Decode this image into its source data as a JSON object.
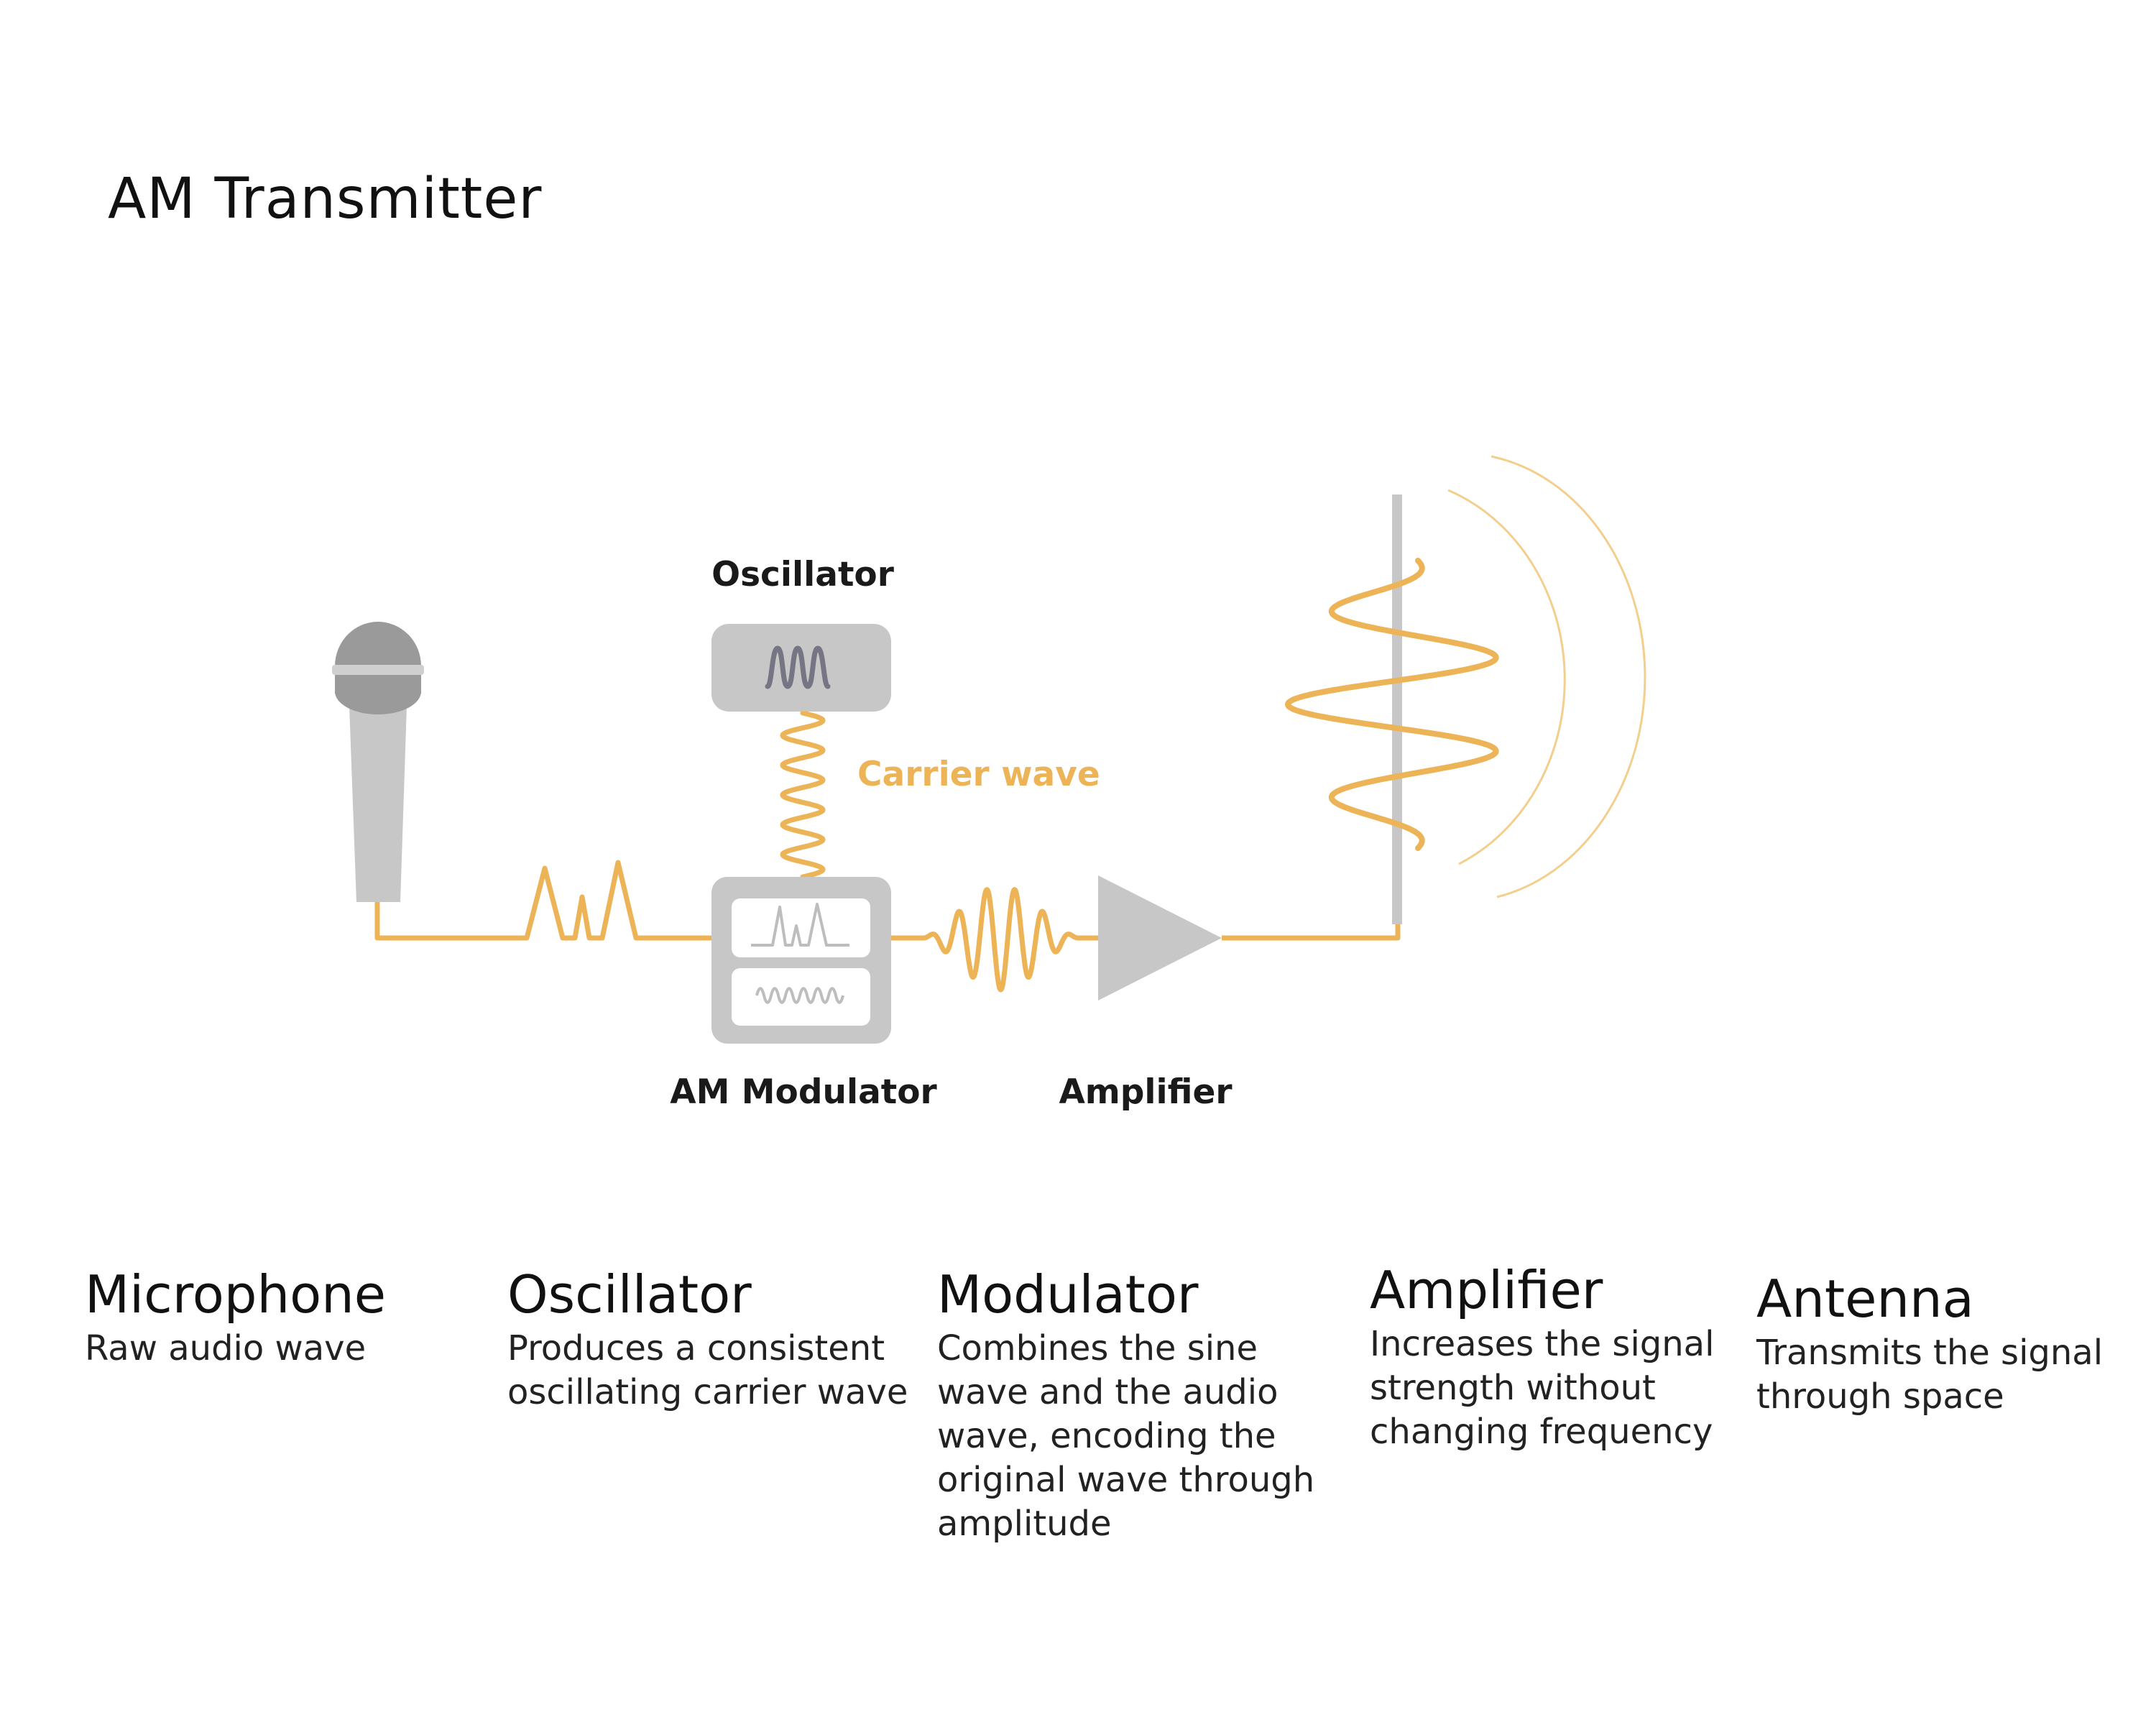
{
  "title": "AM Transmitter",
  "colors": {
    "signal": "#ecb456",
    "wave_ring": "#f3cf8e",
    "device_gray": "#c7c7c7",
    "mic_head": "#9a9a9a",
    "oscillator_glyph": "#757583"
  },
  "diagram": {
    "oscillator_label": "Oscillator",
    "carrier_wave_label": "Carrier wave",
    "modulator_label": "AM Modulator",
    "amplifier_label": "Amplifier"
  },
  "descriptions": [
    {
      "heading": "Microphone",
      "text": "Raw audio wave"
    },
    {
      "heading": "Oscillator",
      "text": "Produces a consistent oscillating carrier wave"
    },
    {
      "heading": "Modulator",
      "text": "Combines the sine wave and the audio wave, encoding the original wave through amplitude"
    },
    {
      "heading": "Amplifier",
      "text": "Increases the signal strength without changing frequency"
    },
    {
      "heading": "Antenna",
      "text": "Transmits the signal through space"
    }
  ]
}
